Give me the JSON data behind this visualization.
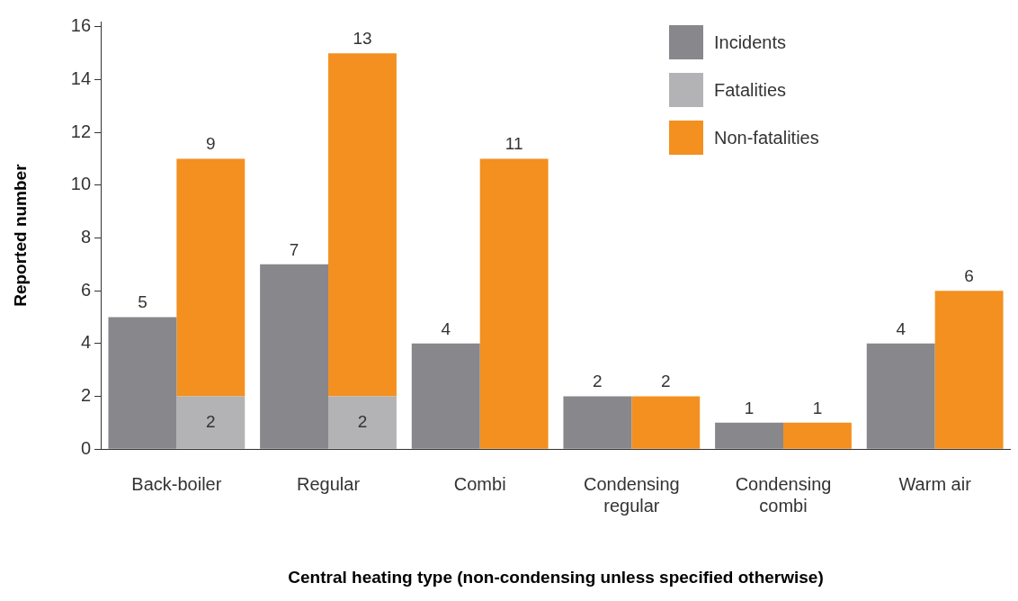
{
  "chart_data": {
    "type": "bar",
    "xlabel": "Central heating type (non-condensing unless specified otherwise)",
    "ylabel": "Reported number",
    "categories": [
      "Back-boiler",
      "Regular",
      "Combi",
      "Condensing regular",
      "Condensing combi",
      "Warm air"
    ],
    "series": [
      {
        "name": "Incidents",
        "color": "#87878c",
        "values": [
          5,
          7,
          4,
          2,
          1,
          4
        ]
      },
      {
        "name": "Fatalities",
        "color": "#b3b3b5",
        "values": [
          2,
          2,
          null,
          null,
          null,
          null
        ]
      },
      {
        "name": "Non-fatalities",
        "color": "#f39020",
        "base": [
          2,
          2,
          0,
          0,
          0,
          0
        ],
        "values": [
          9,
          13,
          11,
          2,
          1,
          6
        ]
      }
    ],
    "data_labels": true,
    "legend": "top right",
    "grid": false,
    "ylim": [
      0,
      16.2
    ],
    "yticks": [
      0,
      2,
      4,
      6,
      8,
      10,
      12,
      14,
      16
    ]
  }
}
